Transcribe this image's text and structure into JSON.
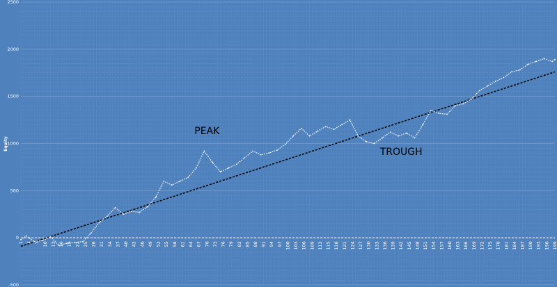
{
  "colors": {
    "plot_background": "#4f81bd",
    "grid": "#6f9ad0",
    "equity_line": "#ffffff",
    "trend_line": "#000000",
    "text": "#ffffff",
    "annotation_text": "#000000"
  },
  "chart_data": {
    "type": "line",
    "title": "",
    "xlabel": "",
    "ylabel": "Equity",
    "xlim": [
      1,
      199
    ],
    "ylim": [
      -500,
      2500
    ],
    "y_ticks": [
      -500,
      0,
      500,
      1000,
      1500,
      2000,
      2500
    ],
    "x_tick_step": 3,
    "x_tick_start": 1,
    "grid": true,
    "legend": "none",
    "series": [
      {
        "style": "dotted-white",
        "x": [
          1,
          3,
          6,
          9,
          12,
          15,
          18,
          21,
          24,
          27,
          30,
          33,
          36,
          39,
          42,
          45,
          48,
          51,
          54,
          57,
          60,
          63,
          66,
          69,
          72,
          75,
          78,
          81,
          84,
          87,
          90,
          93,
          96,
          99,
          102,
          105,
          108,
          111,
          114,
          117,
          120,
          123,
          126,
          129,
          132,
          135,
          138,
          141,
          144,
          147,
          150,
          153,
          156,
          159,
          162,
          165,
          168,
          171,
          174,
          177,
          180,
          183,
          186,
          189,
          192,
          195,
          198,
          199
        ],
        "values": [
          -20,
          20,
          -40,
          -30,
          10,
          -80,
          -60,
          -50,
          -40,
          50,
          160,
          230,
          320,
          250,
          280,
          270,
          330,
          430,
          600,
          560,
          600,
          640,
          740,
          920,
          800,
          700,
          740,
          780,
          850,
          920,
          880,
          900,
          930,
          990,
          1080,
          1160,
          1080,
          1130,
          1180,
          1150,
          1200,
          1250,
          1080,
          1020,
          1000,
          1060,
          1120,
          1080,
          1110,
          1060,
          1200,
          1350,
          1320,
          1310,
          1400,
          1420,
          1470,
          1560,
          1610,
          1660,
          1700,
          1760,
          1780,
          1840,
          1870,
          1900,
          1870,
          1890
        ]
      },
      {
        "style": "dashed-black",
        "x": [
          1,
          199
        ],
        "values": [
          -90,
          1760
        ]
      }
    ],
    "annotations": [
      {
        "text": "PEAK",
        "x": 70,
        "y": 1100
      },
      {
        "text": "TROUGH",
        "x": 142,
        "y": 880
      }
    ]
  }
}
